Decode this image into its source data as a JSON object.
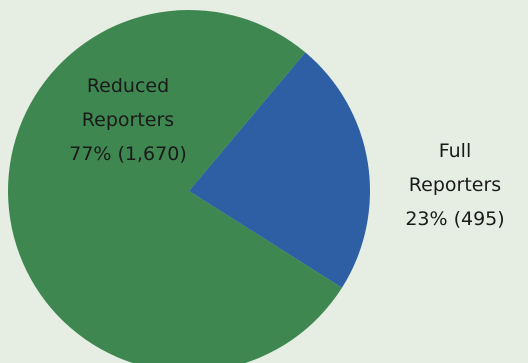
{
  "chart_data": {
    "type": "pie",
    "slices": [
      {
        "label": "Reduced Reporters",
        "line1": "Reduced",
        "line2": "Reporters",
        "value_text": "77% (1,670)",
        "percent": 77,
        "count": 1670,
        "color": "#3f8750"
      },
      {
        "label": "Full Reporters",
        "line1": "Full",
        "line2": "Reporters",
        "value_text": "23% (495)",
        "percent": 23,
        "count": 495,
        "color": "#2e5ea4"
      }
    ]
  }
}
